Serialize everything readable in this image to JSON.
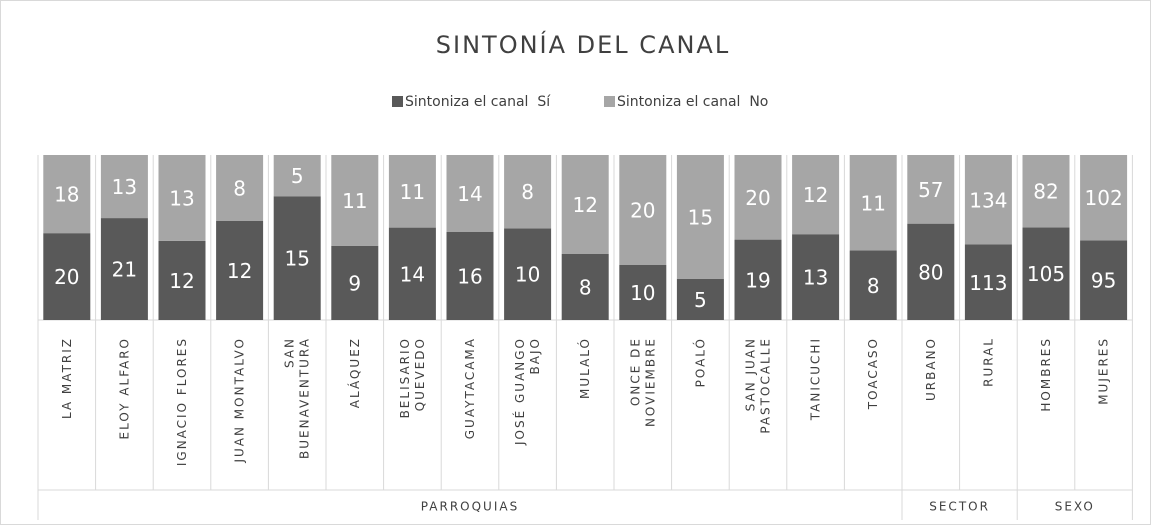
{
  "chart_data": {
    "type": "bar",
    "stacked": "percent",
    "title": "SINTONÍA DEL CANAL",
    "groups": [
      {
        "name": "PARROQUIAS",
        "categories": [
          "LA MATRIZ",
          "ELOY ALFARO",
          "IGNACIO FLORES",
          "JUAN MONTALVO",
          "SAN\nBUENAVENTURA",
          "ALÁQUEZ",
          "BELISARIO\nQUEVEDO",
          "GUAYTACAMA",
          "JOSÉ GUANGO\nBAJO",
          "MULALÓ",
          "ONCE DE\nNOVIEMBRE",
          "POALÓ",
          "SAN JUAN\nPASTOCALLE",
          "TANICUCHI",
          "TOACASO"
        ]
      },
      {
        "name": "SECTOR",
        "categories": [
          "URBANO",
          "RURAL"
        ]
      },
      {
        "name": "SEXO",
        "categories": [
          "HOMBRES",
          "MUJERES"
        ]
      }
    ],
    "series": [
      {
        "name": "Sintoniza el canal  Sí",
        "color": "#595959",
        "values": [
          20,
          21,
          12,
          12,
          15,
          9,
          14,
          16,
          10,
          8,
          10,
          5,
          19,
          13,
          8,
          80,
          113,
          105,
          95
        ]
      },
      {
        "name": "Sintoniza el canal  No",
        "color": "#a6a6a6",
        "values": [
          18,
          13,
          13,
          8,
          5,
          11,
          11,
          14,
          8,
          12,
          20,
          15,
          20,
          12,
          11,
          57,
          134,
          82,
          102
        ]
      }
    ],
    "legend": "top"
  }
}
